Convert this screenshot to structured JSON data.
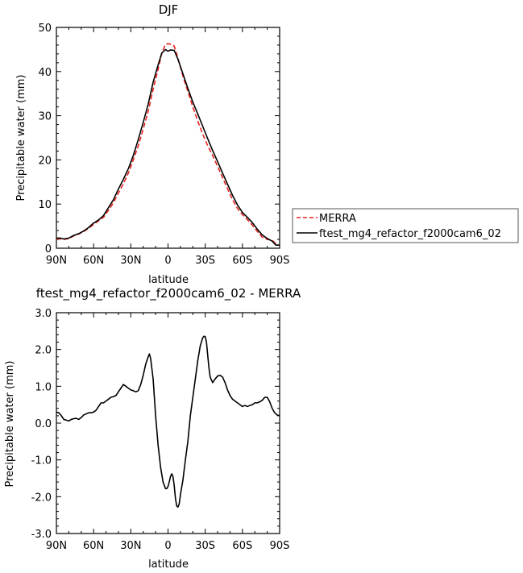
{
  "chart_data": [
    {
      "type": "line",
      "title": "DJF",
      "xlabel": "latitude",
      "ylabel": "Precipitable water  (mm)",
      "xlim": [
        90,
        -90
      ],
      "ylim": [
        0,
        50
      ],
      "x_ticks": [
        90,
        60,
        30,
        0,
        -30,
        -60,
        -90
      ],
      "x_tick_labels": [
        "90N",
        "60N",
        "30N",
        "0",
        "30S",
        "60S",
        "90S"
      ],
      "y_ticks": [
        0,
        10,
        20,
        30,
        40,
        50
      ],
      "y_tick_labels": [
        "0",
        "10",
        "20",
        "30",
        "40",
        "50"
      ],
      "legend": {
        "placement": "outside-right",
        "entries": [
          "MERRA",
          "ftest_mg4_refactor_f2000cam6_02"
        ]
      },
      "series": [
        {
          "name": "MERRA",
          "color": "#e8231f",
          "dash": "dashed",
          "x": [
            90,
            87,
            84,
            80,
            76,
            72,
            68,
            64,
            60,
            56,
            52,
            48,
            44,
            40,
            36,
            32,
            28,
            24,
            20,
            16,
            12,
            8,
            5,
            2,
            0,
            -2,
            -5,
            -8,
            -12,
            -16,
            -20,
            -24,
            -28,
            -32,
            -36,
            -40,
            -44,
            -48,
            -52,
            -56,
            -60,
            -64,
            -68,
            -72,
            -76,
            -80,
            -84,
            -87,
            -90
          ],
          "y": [
            2.1,
            2.1,
            2.0,
            2.2,
            2.8,
            3.2,
            3.8,
            4.5,
            5.4,
            6.2,
            7.0,
            8.6,
            10.3,
            12.5,
            14.6,
            17.0,
            20.0,
            23.2,
            27.0,
            31.0,
            36.0,
            40.5,
            44.2,
            46.2,
            46.3,
            46.2,
            45.8,
            43.0,
            39.0,
            35.5,
            32.0,
            28.8,
            25.8,
            23.2,
            21.0,
            18.5,
            16.0,
            13.5,
            11.0,
            9.0,
            7.6,
            6.5,
            5.2,
            3.8,
            2.5,
            2.0,
            1.8,
            1.0,
            0.7
          ]
        },
        {
          "name": "ftest_mg4_refactor_f2000cam6_02",
          "color": "#000000",
          "dash": "solid",
          "x": [
            90,
            87,
            84,
            80,
            76,
            72,
            68,
            64,
            60,
            56,
            52,
            48,
            44,
            40,
            36,
            32,
            28,
            24,
            20,
            16,
            12,
            8,
            5,
            2,
            0,
            -2,
            -5,
            -8,
            -12,
            -16,
            -20,
            -24,
            -28,
            -32,
            -36,
            -40,
            -44,
            -48,
            -52,
            -56,
            -60,
            -64,
            -68,
            -72,
            -76,
            -80,
            -84,
            -87,
            -90
          ],
          "y": [
            2.3,
            2.3,
            2.1,
            2.3,
            2.9,
            3.3,
            3.9,
            4.7,
            5.7,
            6.4,
            7.4,
            9.2,
            11.0,
            13.4,
            15.6,
            18.0,
            21.0,
            24.6,
            28.5,
            32.6,
            37.6,
            41.5,
            44.2,
            45.0,
            44.6,
            44.9,
            44.8,
            42.8,
            39.5,
            36.2,
            33.1,
            30.4,
            27.6,
            24.8,
            22.1,
            19.6,
            17.0,
            14.5,
            12.0,
            9.8,
            8.1,
            7.0,
            5.8,
            4.3,
            3.0,
            2.2,
            1.6,
            0.7,
            0.7
          ]
        }
      ]
    },
    {
      "type": "line",
      "title": "ftest_mg4_refactor_f2000cam6_02 - MERRA",
      "xlabel": "latitude",
      "ylabel": "Precipitable water  (mm)",
      "xlim": [
        90,
        -90
      ],
      "ylim": [
        -3,
        3
      ],
      "x_ticks": [
        90,
        60,
        30,
        0,
        -30,
        -60,
        -90
      ],
      "x_tick_labels": [
        "90N",
        "60N",
        "30N",
        "0",
        "30S",
        "60S",
        "90S"
      ],
      "y_ticks": [
        -3,
        -2,
        -1,
        0,
        1,
        2,
        3
      ],
      "y_tick_labels": [
        "-3.0",
        "-2.0",
        "-1.0",
        "0.0",
        "1.0",
        "2.0",
        "3.0"
      ],
      "series": [
        {
          "color": "#000000",
          "dash": "solid",
          "x": [
            90,
            88,
            86,
            84,
            82,
            80,
            78,
            76,
            74,
            72,
            70,
            68,
            66,
            64,
            62,
            60,
            58,
            56,
            54,
            52,
            50,
            48,
            46,
            44,
            42,
            40,
            38,
            36,
            34,
            32,
            30,
            28,
            26,
            24,
            22,
            20,
            18,
            16,
            15,
            14,
            12,
            10,
            8,
            6,
            4,
            2,
            1,
            0,
            -1,
            -2,
            -3,
            -4,
            -5,
            -6,
            -7,
            -8,
            -9,
            -10,
            -12,
            -14,
            -16,
            -18,
            -20,
            -22,
            -24,
            -26,
            -28,
            -29,
            -30,
            -31,
            -32,
            -33,
            -34,
            -36,
            -38,
            -40,
            -42,
            -44,
            -46,
            -48,
            -50,
            -52,
            -54,
            -56,
            -58,
            -60,
            -62,
            -64,
            -66,
            -68,
            -70,
            -72,
            -74,
            -76,
            -78,
            -80,
            -82,
            -84,
            -86,
            -88,
            -90
          ],
          "y": [
            0.3,
            0.28,
            0.2,
            0.1,
            0.08,
            0.06,
            0.1,
            0.12,
            0.13,
            0.1,
            0.15,
            0.22,
            0.25,
            0.28,
            0.28,
            0.3,
            0.35,
            0.45,
            0.55,
            0.55,
            0.6,
            0.65,
            0.7,
            0.72,
            0.75,
            0.85,
            0.95,
            1.05,
            1.0,
            0.95,
            0.9,
            0.88,
            0.85,
            0.88,
            1.05,
            1.3,
            1.6,
            1.8,
            1.88,
            1.75,
            1.2,
            0.2,
            -0.6,
            -1.2,
            -1.6,
            -1.78,
            -1.78,
            -1.72,
            -1.6,
            -1.45,
            -1.38,
            -1.45,
            -1.7,
            -2.05,
            -2.25,
            -2.28,
            -2.2,
            -1.95,
            -1.55,
            -1.0,
            -0.5,
            0.2,
            0.7,
            1.2,
            1.7,
            2.1,
            2.32,
            2.36,
            2.35,
            2.2,
            1.85,
            1.5,
            1.25,
            1.1,
            1.2,
            1.28,
            1.3,
            1.25,
            1.1,
            0.9,
            0.75,
            0.65,
            0.6,
            0.55,
            0.5,
            0.45,
            0.48,
            0.45,
            0.48,
            0.5,
            0.55,
            0.55,
            0.58,
            0.62,
            0.7,
            0.7,
            0.58,
            0.4,
            0.28,
            0.22,
            0.2
          ]
        }
      ]
    }
  ]
}
